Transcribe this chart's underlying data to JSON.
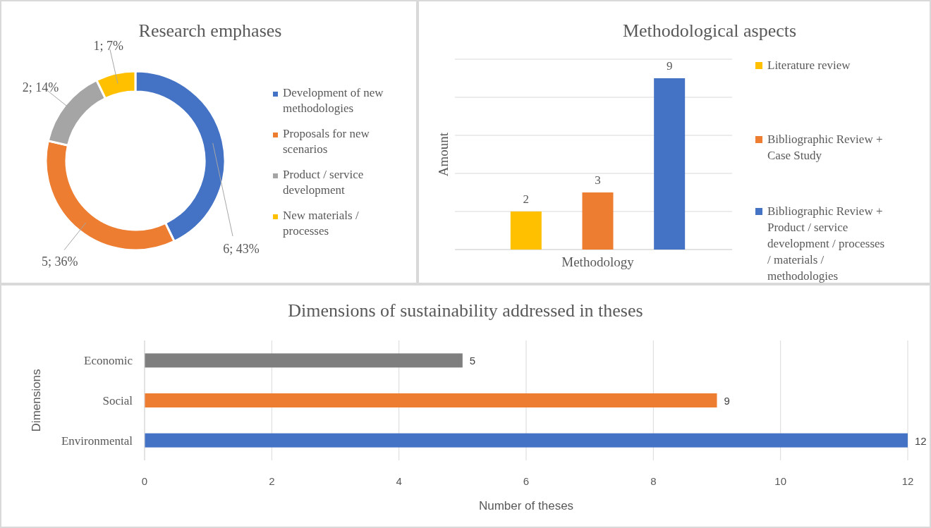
{
  "chart_data": [
    {
      "type": "donut",
      "title": "Research emphases",
      "categories": [
        "Development of new methodologies",
        "Proposals for new scenarios",
        "Product / service development",
        "New materials / processes"
      ],
      "values": [
        6,
        5,
        2,
        1
      ],
      "colors": [
        "#4472c4",
        "#ed7d31",
        "#a5a5a5",
        "#ffc000"
      ],
      "value_labels": [
        "6; 43%",
        "5; 36%",
        "2; 14%",
        "1; 7%"
      ],
      "legend": "right"
    },
    {
      "type": "bar",
      "title": "Methodological aspects",
      "categories": [
        null,
        null,
        null
      ],
      "xlabel": "Methodology",
      "ylabel": "Amount",
      "grid": "y",
      "legend": "right",
      "data_labels": true,
      "stacked": true,
      "series": [
        {
          "name": "Literature review",
          "color": "#ffc000",
          "values": [
            2,
            null,
            null
          ]
        },
        {
          "name": "Bibliographic Review + Case Study",
          "color": "#ed7d31",
          "values": [
            null,
            3,
            null
          ]
        },
        {
          "name": "Bibliographic Review + Product / service development / processes / materials / methodologies",
          "color": "#4472c4",
          "values": [
            null,
            null,
            9
          ]
        }
      ]
    },
    {
      "type": "bar",
      "orientation": "horizontal",
      "title": "Dimensions of sustainability addressed in theses",
      "categories": [
        "Economic",
        "Social",
        "Environmental"
      ],
      "values": [
        5,
        9,
        12
      ],
      "colors": [
        "#7f7f7f",
        "#ed7d31",
        "#4472c4"
      ],
      "xlabel": "Number of theses",
      "ylabel": "Dimensions",
      "xlim": [
        0,
        12
      ],
      "xticks": [
        0,
        2,
        4,
        6,
        8,
        10,
        12
      ],
      "grid": "x",
      "data_labels": true
    }
  ]
}
